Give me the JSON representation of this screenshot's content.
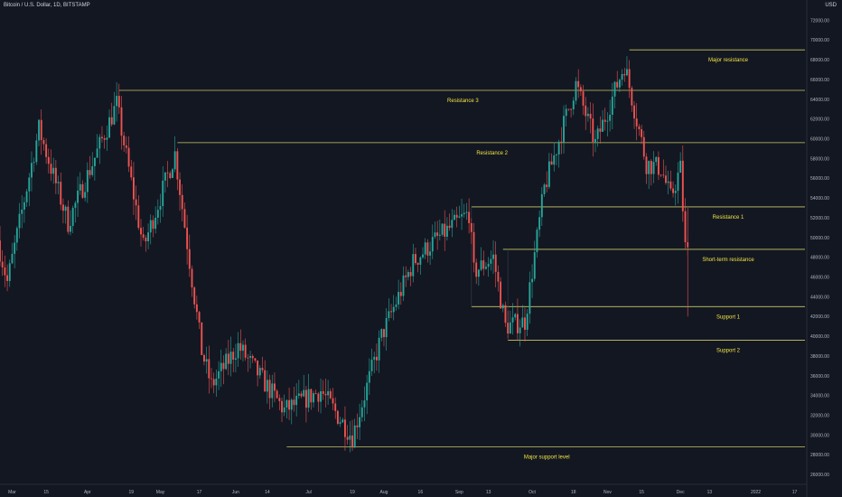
{
  "header": {
    "title": "Bitcoin / U.S. Dollar, 1D, BITSTAMP",
    "currency": "USD"
  },
  "chart_data": {
    "type": "candlestick",
    "title": "Bitcoin / U.S. Dollar, 1D, BITSTAMP",
    "ylabel": "USD",
    "ylim": [
      25000,
      73500
    ],
    "date_range": [
      "2021-02-24",
      "2022-01-22"
    ],
    "yticks": [
      "72000.00",
      "70000.00",
      "68000.00",
      "66000.00",
      "64000.00",
      "62000.00",
      "60000.00",
      "58000.00",
      "56000.00",
      "54000.00",
      "52000.00",
      "50000.00",
      "48000.00",
      "46000.00",
      "44000.00",
      "42000.00",
      "40000.00",
      "38000.00",
      "36000.00",
      "34000.00",
      "32000.00",
      "30000.00",
      "28000.00",
      "26000.00"
    ],
    "xticks": [
      {
        "label": "Mar",
        "date": "2021-03-01"
      },
      {
        "label": "15",
        "date": "2021-03-15"
      },
      {
        "label": "Apr",
        "date": "2021-04-01"
      },
      {
        "label": "19",
        "date": "2021-04-19"
      },
      {
        "label": "May",
        "date": "2021-05-01"
      },
      {
        "label": "17",
        "date": "2021-05-17"
      },
      {
        "label": "Jun",
        "date": "2021-06-01"
      },
      {
        "label": "14",
        "date": "2021-06-14"
      },
      {
        "label": "Jul",
        "date": "2021-07-01"
      },
      {
        "label": "19",
        "date": "2021-07-19"
      },
      {
        "label": "Aug",
        "date": "2021-08-01"
      },
      {
        "label": "16",
        "date": "2021-08-16"
      },
      {
        "label": "Sep",
        "date": "2021-09-01"
      },
      {
        "label": "13",
        "date": "2021-09-13"
      },
      {
        "label": "Oct",
        "date": "2021-10-01"
      },
      {
        "label": "18",
        "date": "2021-10-18"
      },
      {
        "label": "Nov",
        "date": "2021-11-01"
      },
      {
        "label": "15",
        "date": "2021-11-15"
      },
      {
        "label": "Dec",
        "date": "2021-12-01"
      },
      {
        "label": "13",
        "date": "2021-12-13"
      },
      {
        "label": "2022",
        "date": "2022-01-01"
      },
      {
        "label": "17",
        "date": "2022-01-17"
      }
    ],
    "levels": [
      {
        "label": "Major resistance",
        "price": 69000,
        "start": "2021-11-10"
      },
      {
        "label": "Resistance 3",
        "price": 64900,
        "start": "2021-04-14"
      },
      {
        "label": "Resistance 2",
        "price": 59600,
        "start": "2021-05-08"
      },
      {
        "label": "Resistance 1",
        "price": 53100,
        "start": "2021-09-06"
      },
      {
        "label": "Short-term resistance",
        "price": 48800,
        "start": "2021-09-19"
      },
      {
        "label": "Support 1",
        "price": 43000,
        "start": "2021-09-06"
      },
      {
        "label": "Support 2",
        "price": 39600,
        "start": "2021-09-21"
      },
      {
        "label": "Major support level",
        "price": 28800,
        "start": "2021-06-22"
      }
    ],
    "anchors": [
      {
        "date": "2021-02-24",
        "price": 49700
      },
      {
        "date": "2021-02-28",
        "price": 45500
      },
      {
        "date": "2021-03-13",
        "price": 61000
      },
      {
        "date": "2021-03-25",
        "price": 51500
      },
      {
        "date": "2021-04-14",
        "price": 63500
      },
      {
        "date": "2021-04-25",
        "price": 49000
      },
      {
        "date": "2021-05-08",
        "price": 58500
      },
      {
        "date": "2021-05-19",
        "price": 38500
      },
      {
        "date": "2021-05-23",
        "price": 35000
      },
      {
        "date": "2021-06-03",
        "price": 39000
      },
      {
        "date": "2021-06-22",
        "price": 32500
      },
      {
        "date": "2021-07-07",
        "price": 34500
      },
      {
        "date": "2021-07-20",
        "price": 29800
      },
      {
        "date": "2021-08-01",
        "price": 40000
      },
      {
        "date": "2021-08-14",
        "price": 47500
      },
      {
        "date": "2021-08-22",
        "price": 49500
      },
      {
        "date": "2021-09-06",
        "price": 52500
      },
      {
        "date": "2021-09-08",
        "price": 46500
      },
      {
        "date": "2021-09-16",
        "price": 48000
      },
      {
        "date": "2021-09-21",
        "price": 41000
      },
      {
        "date": "2021-09-29",
        "price": 41500
      },
      {
        "date": "2021-10-07",
        "price": 55000
      },
      {
        "date": "2021-10-20",
        "price": 65500
      },
      {
        "date": "2021-10-28",
        "price": 59500
      },
      {
        "date": "2021-11-09",
        "price": 67500
      },
      {
        "date": "2021-11-18",
        "price": 57500
      },
      {
        "date": "2021-11-24",
        "price": 57000
      },
      {
        "date": "2021-11-28",
        "price": 54000
      },
      {
        "date": "2021-12-02",
        "price": 57000
      },
      {
        "date": "2021-12-04",
        "price": 49000
      }
    ],
    "colors": {
      "up": "#26a69a",
      "down": "#ef5350",
      "level": "#c9c864",
      "label": "#f0e442",
      "background": "#131722",
      "axis_text": "#b2b5be"
    }
  }
}
